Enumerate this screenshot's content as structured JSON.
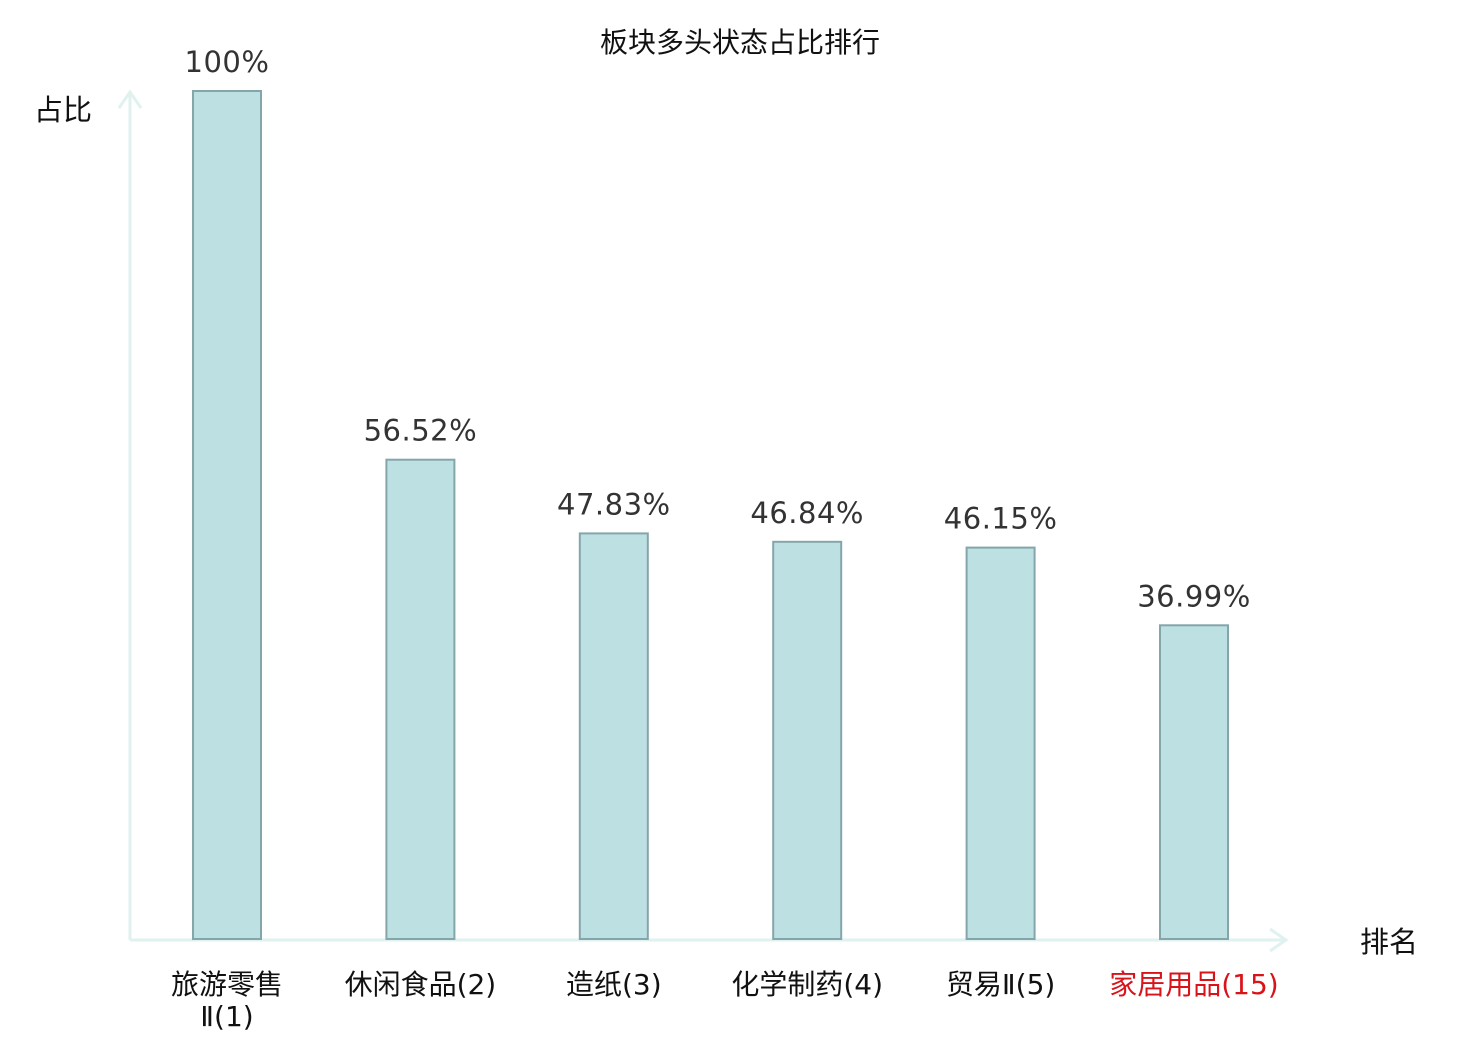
{
  "chart_data": {
    "type": "bar",
    "title": "板块多头状态占比排行",
    "ylabel": "占比",
    "xlabel": "排名",
    "ylim": [
      0,
      100
    ],
    "grid": false,
    "categories": [
      "旅游零售Ⅱ(1)",
      "休闲食品(2)",
      "造纸(3)",
      "化学制药(4)",
      "贸易Ⅱ(5)",
      "家居用品(15)"
    ],
    "category_lines": [
      [
        "旅游零售",
        "Ⅱ(1)"
      ],
      [
        "休闲食品(2)"
      ],
      [
        "造纸(3)"
      ],
      [
        "化学制药(4)"
      ],
      [
        "贸易Ⅱ(5)"
      ],
      [
        "家居用品(15)"
      ]
    ],
    "values": [
      100,
      56.52,
      47.83,
      46.84,
      46.15,
      36.99
    ],
    "value_labels": [
      "100%",
      "56.52%",
      "47.83%",
      "46.84%",
      "46.15%",
      "36.99%"
    ],
    "highlight_index": 5,
    "colors": {
      "bar_fill": "#bde0e3",
      "bar_stroke": "#84a6aa",
      "axis": "#e0f2ef",
      "label": "#111111",
      "value_label": "#333333",
      "highlight": "#d9131a"
    }
  }
}
